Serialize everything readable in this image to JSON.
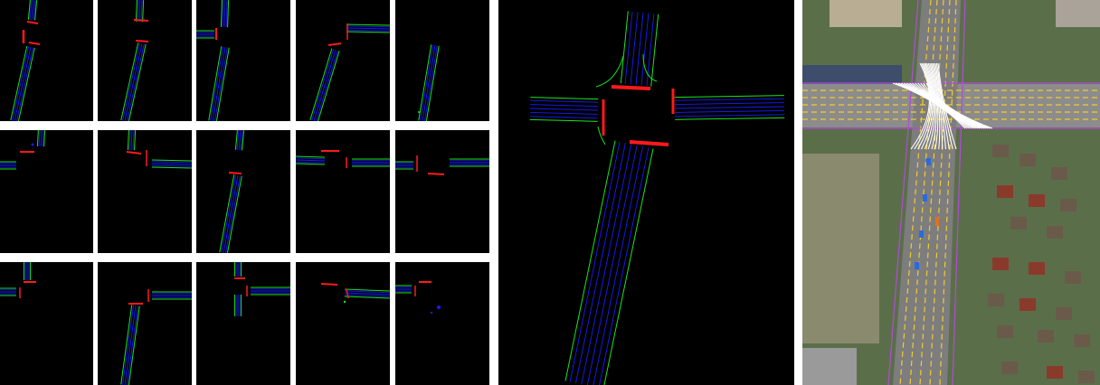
{
  "colors": {
    "background": "#000000",
    "lane_centerline": "#1a1aff",
    "lane_boundary": "#19e619",
    "stop_line": "#ff1a1a",
    "aerial_lane_yellow": "#f2cc2a",
    "aerial_lane_white": "#ffffff",
    "aerial_boundary_purple": "#b04cd8"
  },
  "grid": {
    "rows": 3,
    "cols": 5,
    "tiles": [
      {
        "pattern": "north-road-down"
      },
      {
        "pattern": "north-road-down-red"
      },
      {
        "pattern": "tee-west"
      },
      {
        "pattern": "tee-east"
      },
      {
        "pattern": "single-road"
      },
      {
        "pattern": "small-cross-left"
      },
      {
        "pattern": "tee-east-short"
      },
      {
        "pattern": "road-down"
      },
      {
        "pattern": "horizontal-road"
      },
      {
        "pattern": "horizontal-road-left"
      },
      {
        "pattern": "small-cross-left-2"
      },
      {
        "pattern": "tee-east-long"
      },
      {
        "pattern": "tee-east-2"
      },
      {
        "pattern": "scattered-red"
      },
      {
        "pattern": "scattered-blue"
      }
    ]
  },
  "large_map": {
    "pattern": "intersection"
  },
  "aerial": {
    "pattern": "satellite-with-lane-overlay"
  }
}
